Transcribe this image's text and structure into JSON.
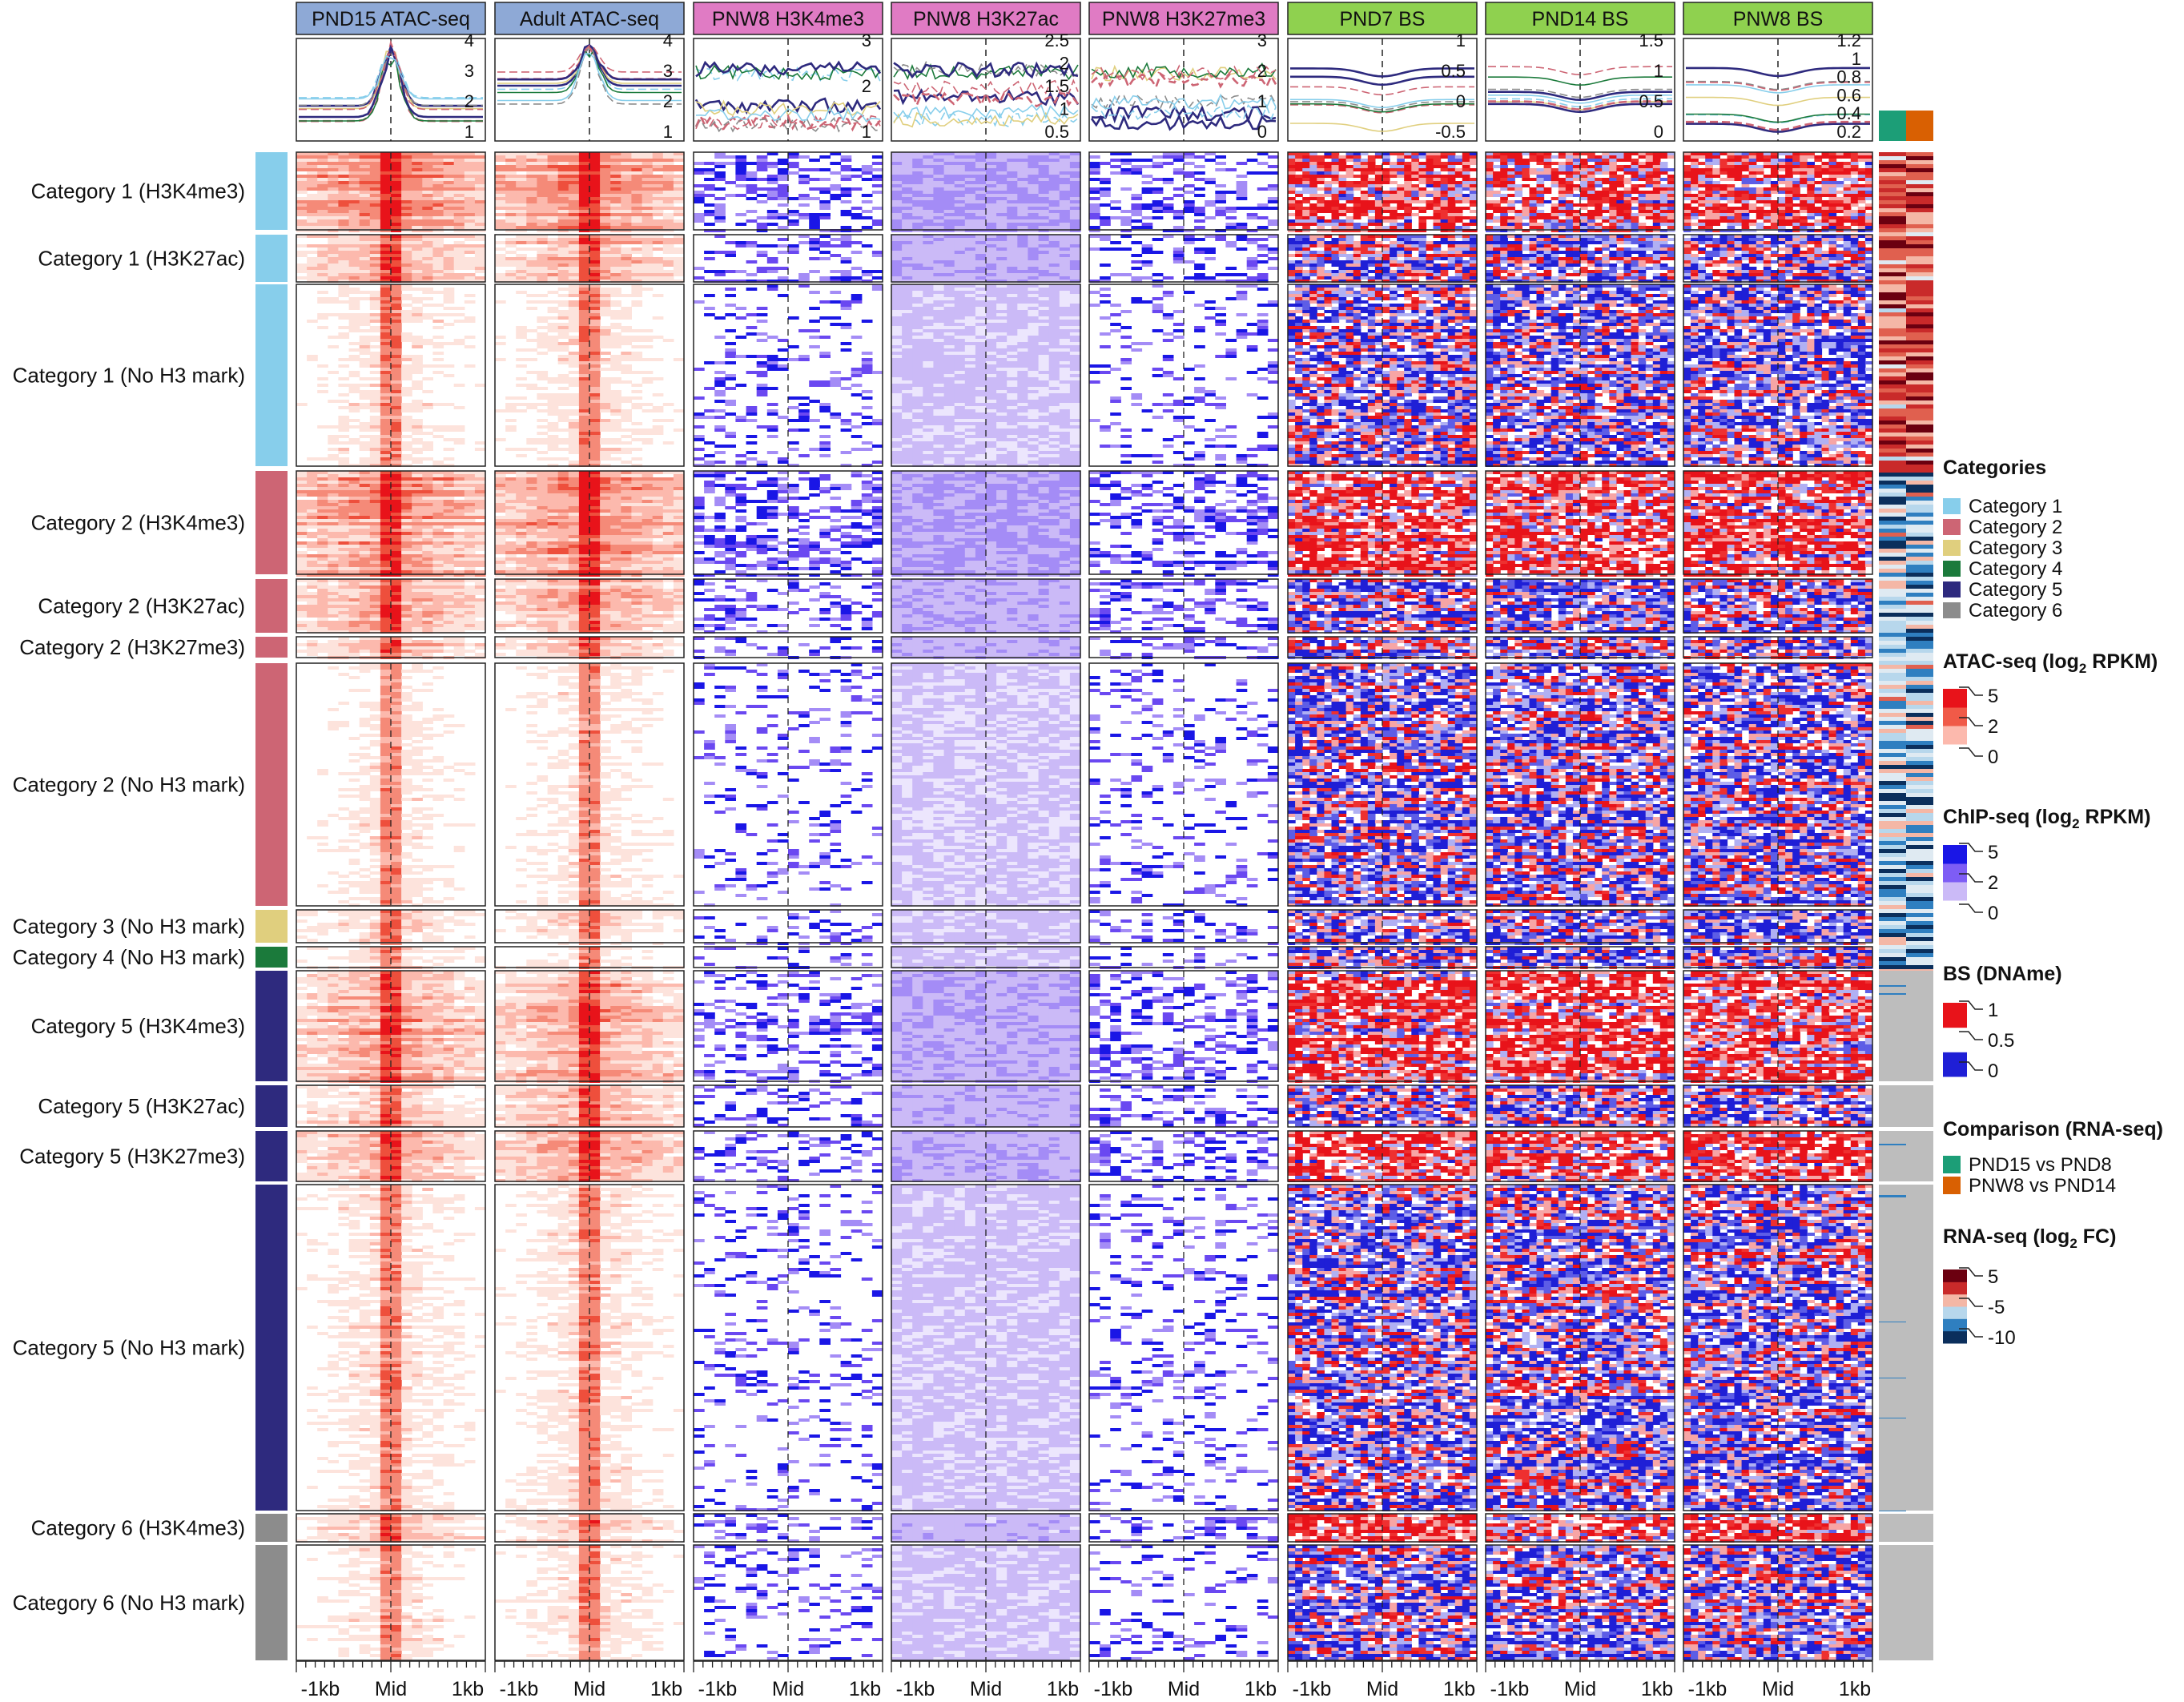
{
  "chart_data": {
    "type": "heatmap",
    "column_headers": [
      {
        "label": "PND15 ATAC-seq",
        "group": "atac",
        "color": "#8ea9d6"
      },
      {
        "label": "Adult ATAC-seq",
        "group": "atac",
        "color": "#8ea9d6"
      },
      {
        "label": "PNW8 H3K4me3",
        "group": "chip",
        "color": "#e07bc4"
      },
      {
        "label": "PNW8 H3K27ac",
        "group": "chip",
        "color": "#e07bc4"
      },
      {
        "label": "PNW8 H3K27me3",
        "group": "chip",
        "color": "#e07bc4"
      },
      {
        "label": "PND7 BS",
        "group": "bs",
        "color": "#8fd14f"
      },
      {
        "label": "PND14 BS",
        "group": "bs",
        "color": "#8fd14f"
      },
      {
        "label": "PNW8 BS",
        "group": "bs",
        "color": "#8fd14f"
      }
    ],
    "profile_ticks": [
      [
        "4",
        "3",
        "2",
        "1"
      ],
      [
        "4",
        "3",
        "2",
        "1"
      ],
      [
        "3",
        "2",
        "1"
      ],
      [
        "2.5",
        "2",
        "1.5",
        "1",
        "0.5"
      ],
      [
        "3",
        "2",
        "1",
        "0"
      ],
      [
        "1",
        "0.5",
        "0",
        "-0.5"
      ],
      [
        "1.5",
        "1",
        "0.5",
        "0"
      ],
      [
        "1.2",
        "1",
        "0.8",
        "0.6",
        "0.4",
        "0.2"
      ]
    ],
    "x_ticks": [
      "-1kb",
      "Mid",
      "1kb"
    ],
    "row_groups": [
      {
        "label": "Category 1 (H3K4me3)",
        "category": 1,
        "mark": "H3K4me3"
      },
      {
        "label": "Category 1 (H3K27ac)",
        "category": 1,
        "mark": "H3K27ac"
      },
      {
        "label": "Category 1 (No H3 mark)",
        "category": 1,
        "mark": "none"
      },
      {
        "label": "Category 2 (H3K4me3)",
        "category": 2,
        "mark": "H3K4me3"
      },
      {
        "label": "Category 2 (H3K27ac)",
        "category": 2,
        "mark": "H3K27ac"
      },
      {
        "label": "Category 2 (H3K27me3)",
        "category": 2,
        "mark": "H3K27me3"
      },
      {
        "label": "Category 2 (No H3 mark)",
        "category": 2,
        "mark": "none"
      },
      {
        "label": "Category 3 (No H3 mark)",
        "category": 3,
        "mark": "none"
      },
      {
        "label": "Category 4 (No H3 mark)",
        "category": 4,
        "mark": "none"
      },
      {
        "label": "Category 5 (H3K4me3)",
        "category": 5,
        "mark": "H3K4me3"
      },
      {
        "label": "Category 5 (H3K27ac)",
        "category": 5,
        "mark": "H3K27ac"
      },
      {
        "label": "Category 5 (H3K27me3)",
        "category": 5,
        "mark": "H3K27me3"
      },
      {
        "label": "Category 5 (No H3 mark)",
        "category": 5,
        "mark": "none"
      },
      {
        "label": "Category 6 (H3K4me3)",
        "category": 6,
        "mark": "H3K4me3"
      },
      {
        "label": "Category 6 (No H3 mark)",
        "category": 6,
        "mark": "none"
      }
    ],
    "category_colors": [
      "#87ceeb",
      "#cd6574",
      "#e0cf7e",
      "#1b7a3b",
      "#2e2a7e",
      "#8c8c8c"
    ],
    "legends": {
      "categories": {
        "title": "Categories",
        "items": [
          "Category 1",
          "Category 2",
          "Category 3",
          "Category 4",
          "Category 5",
          "Category 6"
        ]
      },
      "atac": {
        "title_pre": "ATAC-seq (log",
        "title_sub": "2",
        "title_post": " RPKM)",
        "ticks": [
          "5",
          "2",
          "0"
        ],
        "colors": [
          "#ffffff",
          "#fcb9ad",
          "#f05a48",
          "#e8131a"
        ]
      },
      "chip": {
        "title_pre": "ChIP-seq (log",
        "title_sub": "2",
        "title_post": " RPKM)",
        "ticks": [
          "5",
          "2",
          "0"
        ],
        "colors": [
          "#ffffff",
          "#cbbaf7",
          "#7e5df5",
          "#1a16e6"
        ]
      },
      "bs": {
        "title": "BS (DNAme)",
        "ticks": [
          "1",
          "0.5",
          "0"
        ],
        "colors": [
          "#1f1fd6",
          "#ffffff",
          "#e8131a"
        ]
      },
      "comparison": {
        "title": "Comparison (RNA-seq)",
        "items": [
          {
            "label": "PND15 vs PND8",
            "color": "#1c9e77"
          },
          {
            "label": "PNW8 vs PND14",
            "color": "#d96002"
          }
        ]
      },
      "rna": {
        "title_pre": "RNA-seq (log",
        "title_sub": "2",
        "title_post": " FC)",
        "ticks": [
          "5",
          "-5",
          "-10"
        ],
        "colors": [
          "#0b2f5c",
          "#2f7fc0",
          "#b7d7ec",
          "#f4b7a6",
          "#c92a2a",
          "#6b0010"
        ]
      }
    }
  }
}
